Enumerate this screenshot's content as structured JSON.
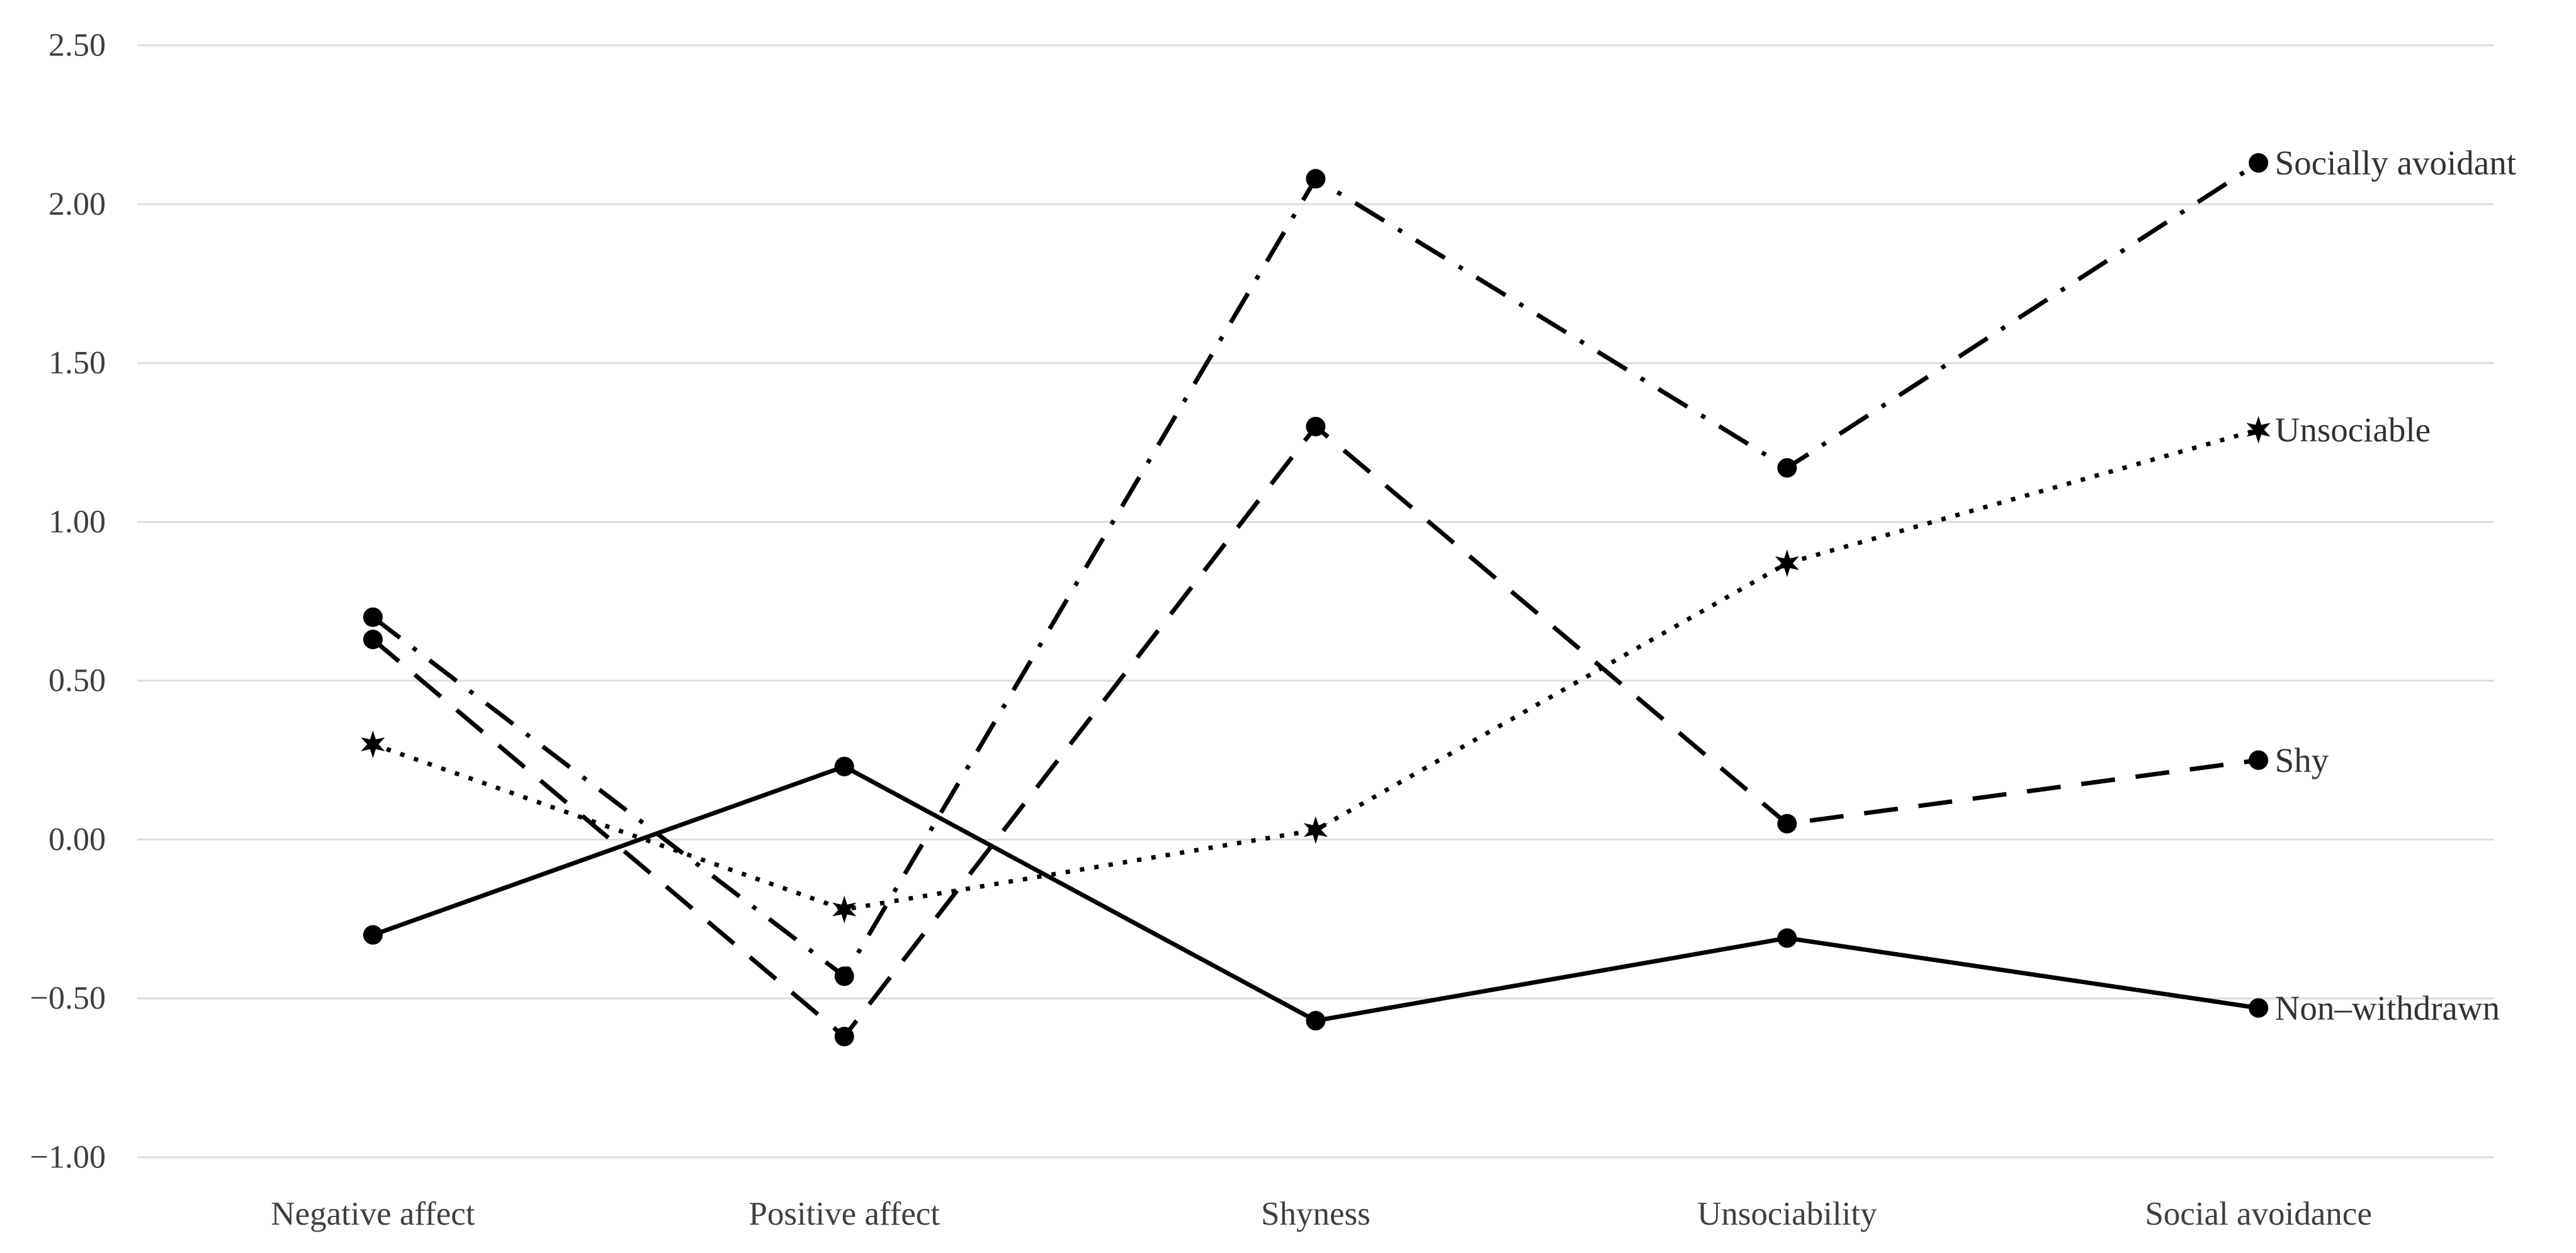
{
  "chart_data": {
    "type": "line",
    "title": "",
    "xlabel": "",
    "ylabel": "",
    "categories": [
      "Negative affect",
      "Positive affect",
      "Shyness",
      "Unsociability",
      "Social avoidance"
    ],
    "series": [
      {
        "name": "Socially avoidant",
        "values": [
          0.7,
          -0.43,
          2.08,
          1.17,
          2.13
        ],
        "line_style": "dash-dot",
        "marker": "circle"
      },
      {
        "name": "Unsociable",
        "values": [
          0.3,
          -0.22,
          0.03,
          0.87,
          1.29
        ],
        "line_style": "dotted",
        "marker": "star"
      },
      {
        "name": "Shy",
        "values": [
          0.63,
          -0.62,
          1.3,
          0.05,
          0.25
        ],
        "line_style": "dashed",
        "marker": "circle"
      },
      {
        "name": "Non–withdrawn",
        "values": [
          -0.3,
          0.23,
          -0.57,
          -0.31,
          -0.53
        ],
        "line_style": "solid",
        "marker": "circle"
      }
    ],
    "y_ticks": [
      "2.50",
      "2.00",
      "1.50",
      "1.00",
      "0.50",
      "0.00",
      "−0.50",
      "−1.00"
    ],
    "y_tick_values": [
      2.5,
      2.0,
      1.5,
      1.0,
      0.5,
      0.0,
      -0.5,
      -1.0
    ],
    "ylim": [
      -1.0,
      2.5
    ],
    "grid": true,
    "legend_position": "line-end-labels",
    "colors": {
      "line": "#000000",
      "grid": "#dcdcdc",
      "text": "#3f3f3f",
      "background": "#ffffff"
    }
  }
}
